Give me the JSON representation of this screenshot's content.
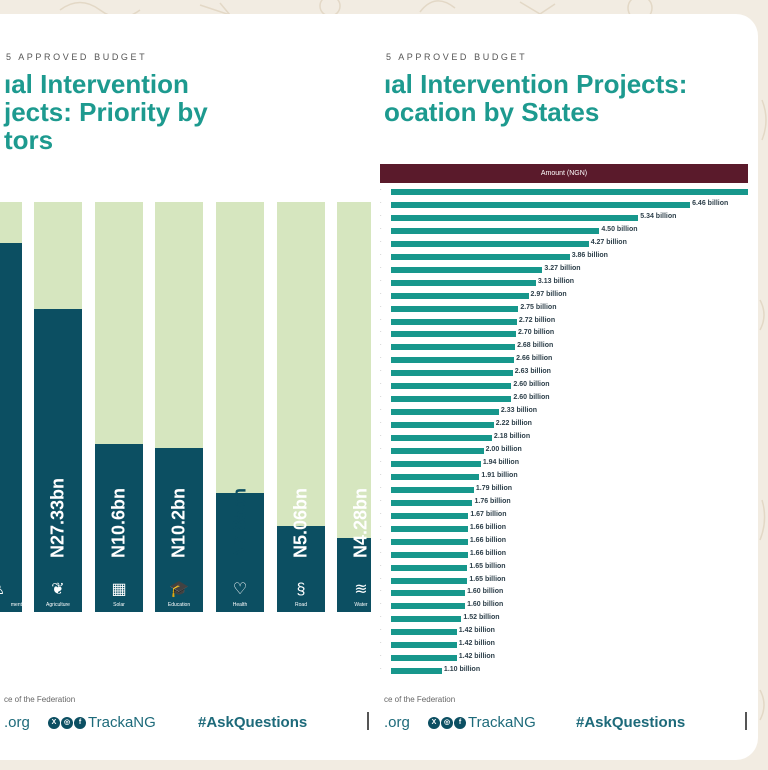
{
  "colors": {
    "background": "#f2ece2",
    "title": "#1d9a8f",
    "bar_dark": "#0c4f62",
    "bar_track": "#d6e6bf",
    "table_header": "#5a1a2b",
    "hbar": "#17978c"
  },
  "left_panel": {
    "kicker": "5 APPROVED BUDGET",
    "title_lines": [
      "ıal Intervention",
      "jects: Priority by",
      "tors"
    ],
    "source": "ce of the Federation",
    "footer": {
      "site": ".org",
      "social_icons": [
        "x-icon",
        "instagram-icon",
        "facebook-icon"
      ],
      "handle": "TrackaNG",
      "hashtag": "#AskQuestions"
    }
  },
  "right_panel": {
    "kicker": "5 APPROVED BUDGET",
    "title_lines": [
      "ıal Intervention Projects:",
      "ocation by States"
    ],
    "source": "ce of the Federation",
    "footer": {
      "site": ".org",
      "social_icons": [
        "x-icon",
        "instagram-icon",
        "facebook-icon"
      ],
      "handle": "TrackaNG",
      "hashtag": "#AskQuestions"
    }
  },
  "chart_data": [
    {
      "type": "bar",
      "orientation": "vertical",
      "categories": [
        "ment",
        "Agriculture",
        "Solar",
        "Education",
        "Health",
        "Road",
        "Water"
      ],
      "labels": [
        "",
        "N27.33bn",
        "N10.6bn",
        "N10.2bn",
        "N7.85bn",
        "N5.06bn",
        "N4.28bn"
      ],
      "values": [
        null,
        27.33,
        10.6,
        10.2,
        7.85,
        5.06,
        4.28
      ],
      "unit": "N billion",
      "fill_level": [
        0.9,
        0.74,
        0.41,
        0.4,
        0.29,
        0.21,
        0.18
      ],
      "icons": [
        "person-icon",
        "seedling-icon",
        "solar-panel-icon",
        "graduation-cap-icon",
        "heart-pulse-icon",
        "road-icon",
        "water-waves-icon"
      ],
      "grid": false
    },
    {
      "type": "bar",
      "orientation": "horizontal",
      "column_header": "Amount (NGN)",
      "values": [
        7.7,
        6.46,
        5.34,
        4.5,
        4.27,
        3.86,
        3.27,
        3.13,
        2.97,
        2.75,
        2.72,
        2.7,
        2.68,
        2.66,
        2.63,
        2.6,
        2.6,
        2.33,
        2.22,
        2.18,
        2.0,
        1.94,
        1.91,
        1.79,
        1.76,
        1.67,
        1.66,
        1.66,
        1.66,
        1.65,
        1.65,
        1.6,
        1.6,
        1.52,
        1.42,
        1.42,
        1.42,
        1.1
      ],
      "labels": [
        "",
        "6.46 billion",
        "5.34 billion",
        "4.50 billion",
        "4.27 billion",
        "3.86 billion",
        "3.27 billion",
        "3.13 billion",
        "2.97 billion",
        "2.75 billion",
        "2.72 billion",
        "2.70 billion",
        "2.68 billion",
        "2.66 billion",
        "2.63 billion",
        "2.60 billion",
        "2.60 billion",
        "2.33 billion",
        "2.22 billion",
        "2.18 billion",
        "2.00 billion",
        "1.94 billion",
        "1.91 billion",
        "1.79 billion",
        "1.76 billion",
        "1.67 billion",
        "1.66 billion",
        "1.66 billion",
        "1.66 billion",
        "1.65 billion",
        "1.65 billion",
        "1.60 billion",
        "1.60 billion",
        "1.52 billion",
        "1.42 billion",
        "1.42 billion",
        "1.42 billion",
        "1.10 billion"
      ],
      "unit": "NGN billion",
      "grid": false
    }
  ]
}
